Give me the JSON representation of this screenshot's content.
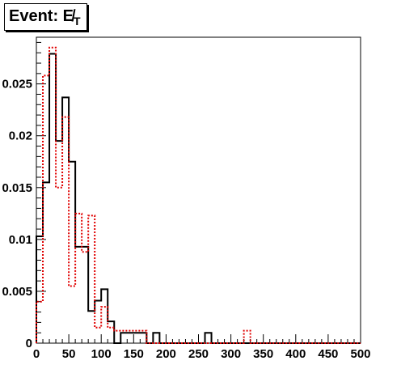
{
  "chart_data": {
    "type": "histogram",
    "title": "Event: E̸",
    "title_subscript": "T",
    "xlabel": "",
    "ylabel": "",
    "xlim": [
      0,
      500
    ],
    "ylim": [
      0,
      0.0295
    ],
    "x_ticks": [
      "0",
      "50",
      "100",
      "150",
      "200",
      "250",
      "300",
      "350",
      "400",
      "450",
      "500"
    ],
    "y_ticks": [
      "0",
      "0.005",
      "0.01",
      "0.015",
      "0.02",
      "0.025"
    ],
    "y_tick_values": [
      0,
      0.005,
      0.01,
      0.015,
      0.02,
      0.025
    ],
    "bin_width": 10,
    "bin_edges_start": 0,
    "series": [
      {
        "color": "#000000",
        "style": "solid",
        "values": [
          0.0103,
          0.0155,
          0.0279,
          0.0195,
          0.0237,
          0.0175,
          0.0093,
          0.0093,
          0.0031,
          0.0041,
          0.0052,
          0.0021,
          0.0,
          0.001,
          0.001,
          0.001,
          0.001,
          0.0,
          0.001,
          0.0,
          0.0,
          0.0,
          0.0,
          0.0,
          0.0,
          0.0,
          0.001,
          0.0,
          0.0,
          0.0,
          0.0,
          0.0,
          0.0,
          0.0,
          0.0,
          0.0,
          0.0,
          0.0,
          0.0,
          0.0,
          0.0,
          0.0,
          0.0,
          0.0,
          0.0,
          0.0,
          0.0,
          0.0,
          0.0,
          0.0
        ]
      },
      {
        "color": "#e00000",
        "style": "dotted",
        "values": [
          0.004,
          0.0258,
          0.0285,
          0.015,
          0.0218,
          0.0055,
          0.0125,
          0.0088,
          0.0123,
          0.0015,
          0.0035,
          0.0015,
          0.0012,
          0.0012,
          0.0012,
          0.0012,
          0.0012,
          0.0,
          0.0,
          0.0,
          0.0,
          0.0,
          0.0,
          0.0,
          0.0,
          0.0,
          0.0,
          0.0,
          0.0,
          0.0,
          0.0,
          0.0,
          0.0012,
          0.0,
          0.0,
          0.0,
          0.0,
          0.0,
          0.0,
          0.0,
          0.0,
          0.0,
          0.0,
          0.0,
          0.0,
          0.0,
          0.0,
          0.0,
          0.0,
          0.0
        ]
      }
    ]
  }
}
